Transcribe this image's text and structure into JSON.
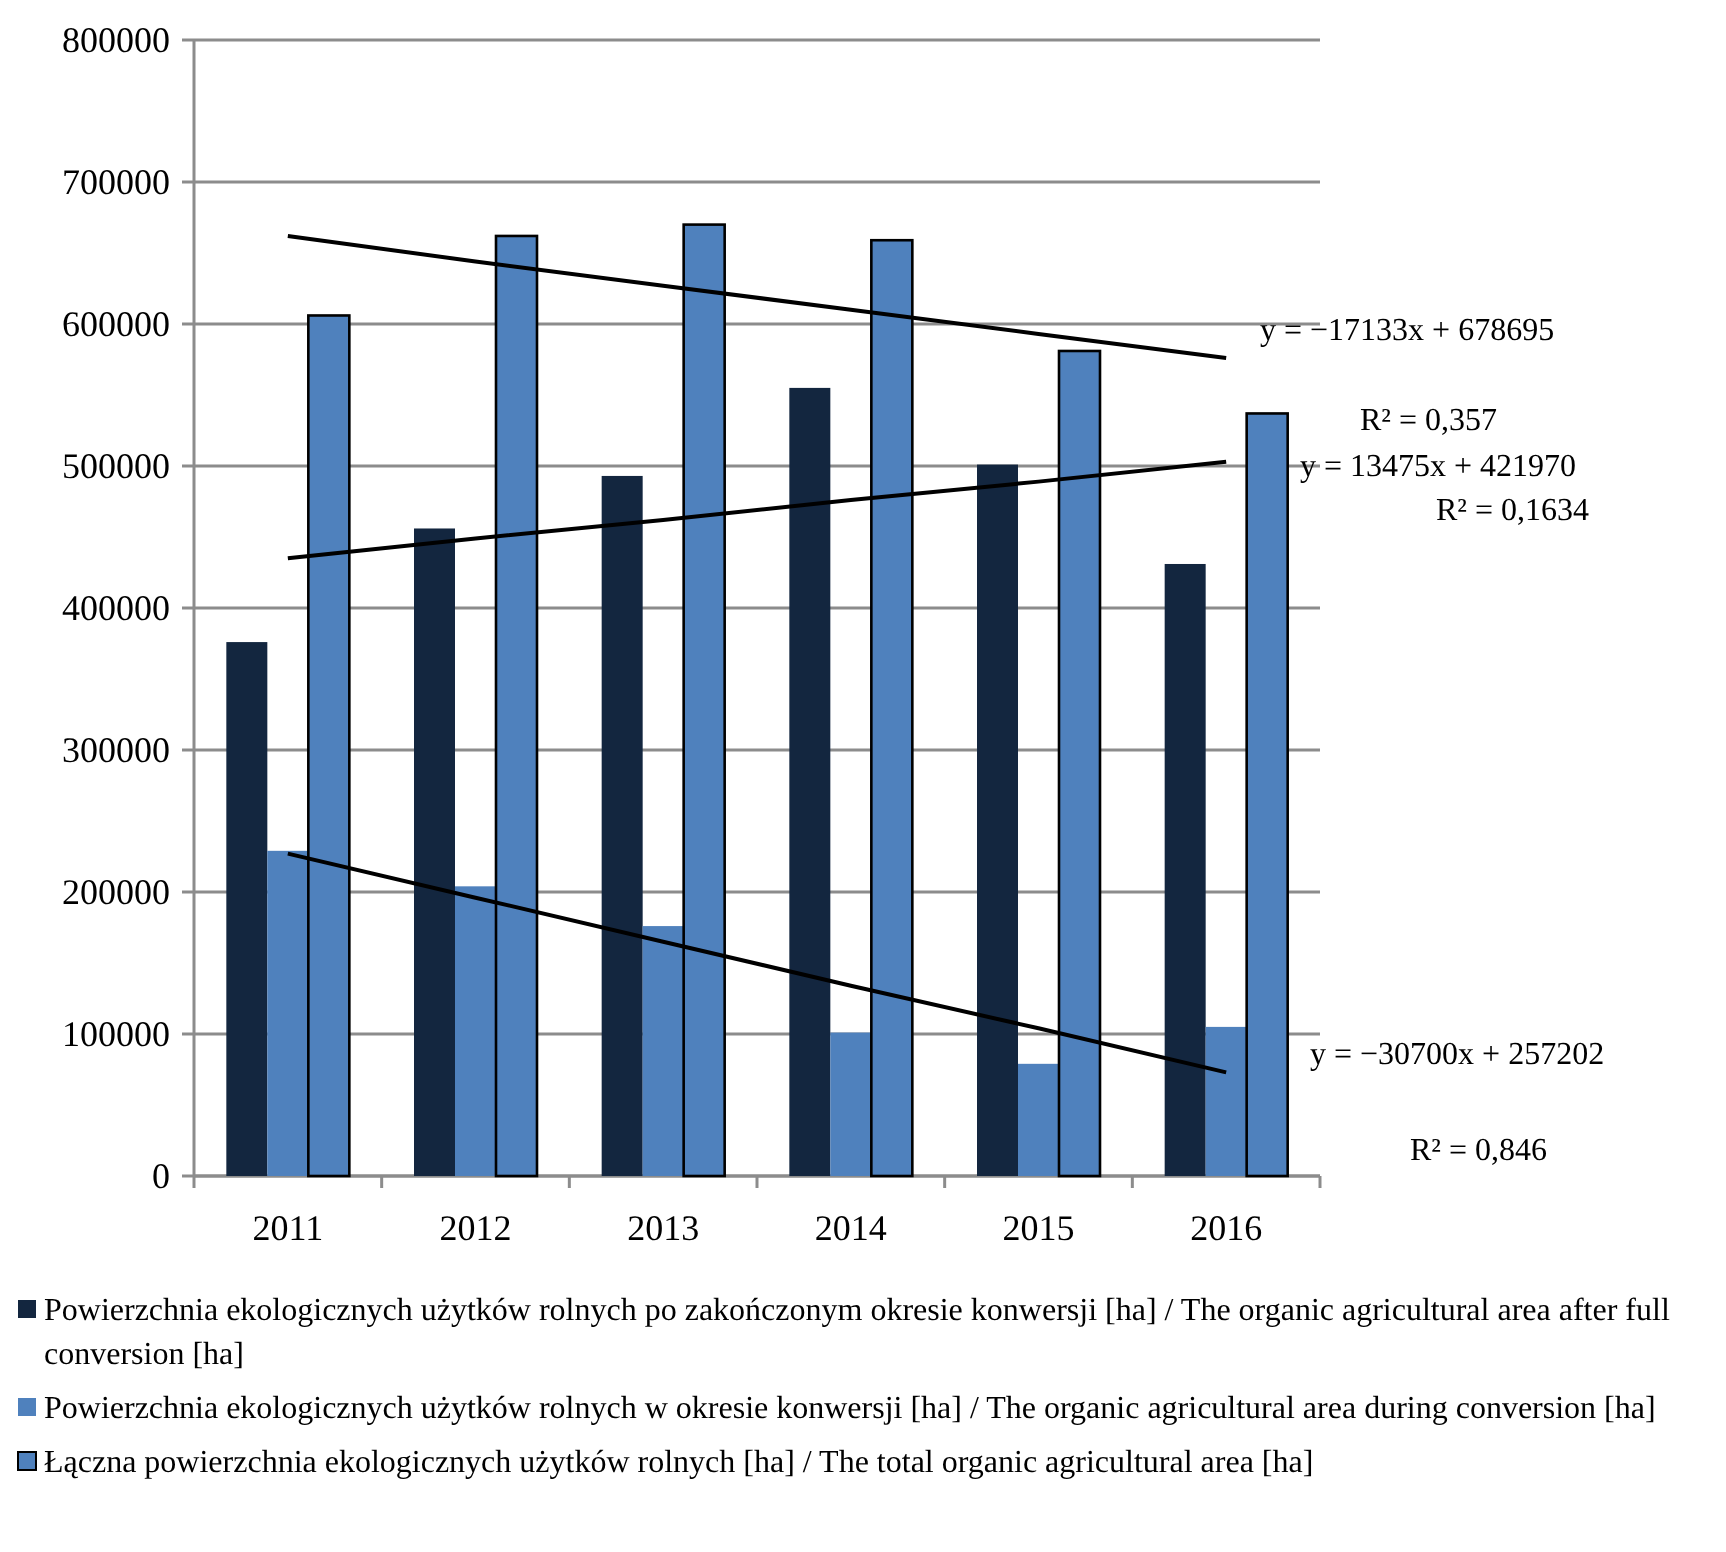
{
  "chart_data": {
    "type": "bar",
    "categories": [
      "2011",
      "2012",
      "2013",
      "2014",
      "2015",
      "2016"
    ],
    "ylim": [
      0,
      800000
    ],
    "yticks": [
      0,
      100000,
      200000,
      300000,
      400000,
      500000,
      600000,
      700000,
      800000
    ],
    "grid": "y",
    "legend": "bottom",
    "series": [
      {
        "name": "Powierzchnia ekologicznych użytków rolnych po zakończonym okresie konwersji [ha] / The organic agricultural  area after full conversion [ha]",
        "color": "#13263f",
        "values": [
          376000,
          456000,
          493000,
          555000,
          501000,
          431000
        ]
      },
      {
        "name": "Powierzchnia ekologicznych użytków rolnych w okresie konwersji [ha] / The organic agricultural area during conversion [ha]",
        "color": "#4f81bd",
        "values": [
          229000,
          204000,
          176000,
          101000,
          79000,
          105000
        ]
      },
      {
        "name": "Łączna powierzchnia ekologicznych użytków rolnych [ha] / The total organic agricultural area [ha]",
        "color": "#4f81bd",
        "values": [
          606000,
          662000,
          670000,
          659000,
          581000,
          537000
        ]
      },
      {
        "type": "line",
        "color": "#000000",
        "values": [
          662000,
          644000,
          627000,
          610000,
          593000,
          576000
        ]
      },
      {
        "type": "line",
        "color": "#000000",
        "values": [
          435000,
          449000,
          462000,
          476000,
          489000,
          503000
        ]
      },
      {
        "type": "line",
        "color": "#000000",
        "values": [
          227000,
          196000,
          165000,
          134000,
          104000,
          73000
        ]
      }
    ],
    "annotations": [
      "y = −17133x + 678695",
      "R² = 0,357",
      "y = 13475x + 421970",
      "R² = 0,1634",
      "y = −30700x + 257202",
      "R² = 0,846"
    ]
  }
}
